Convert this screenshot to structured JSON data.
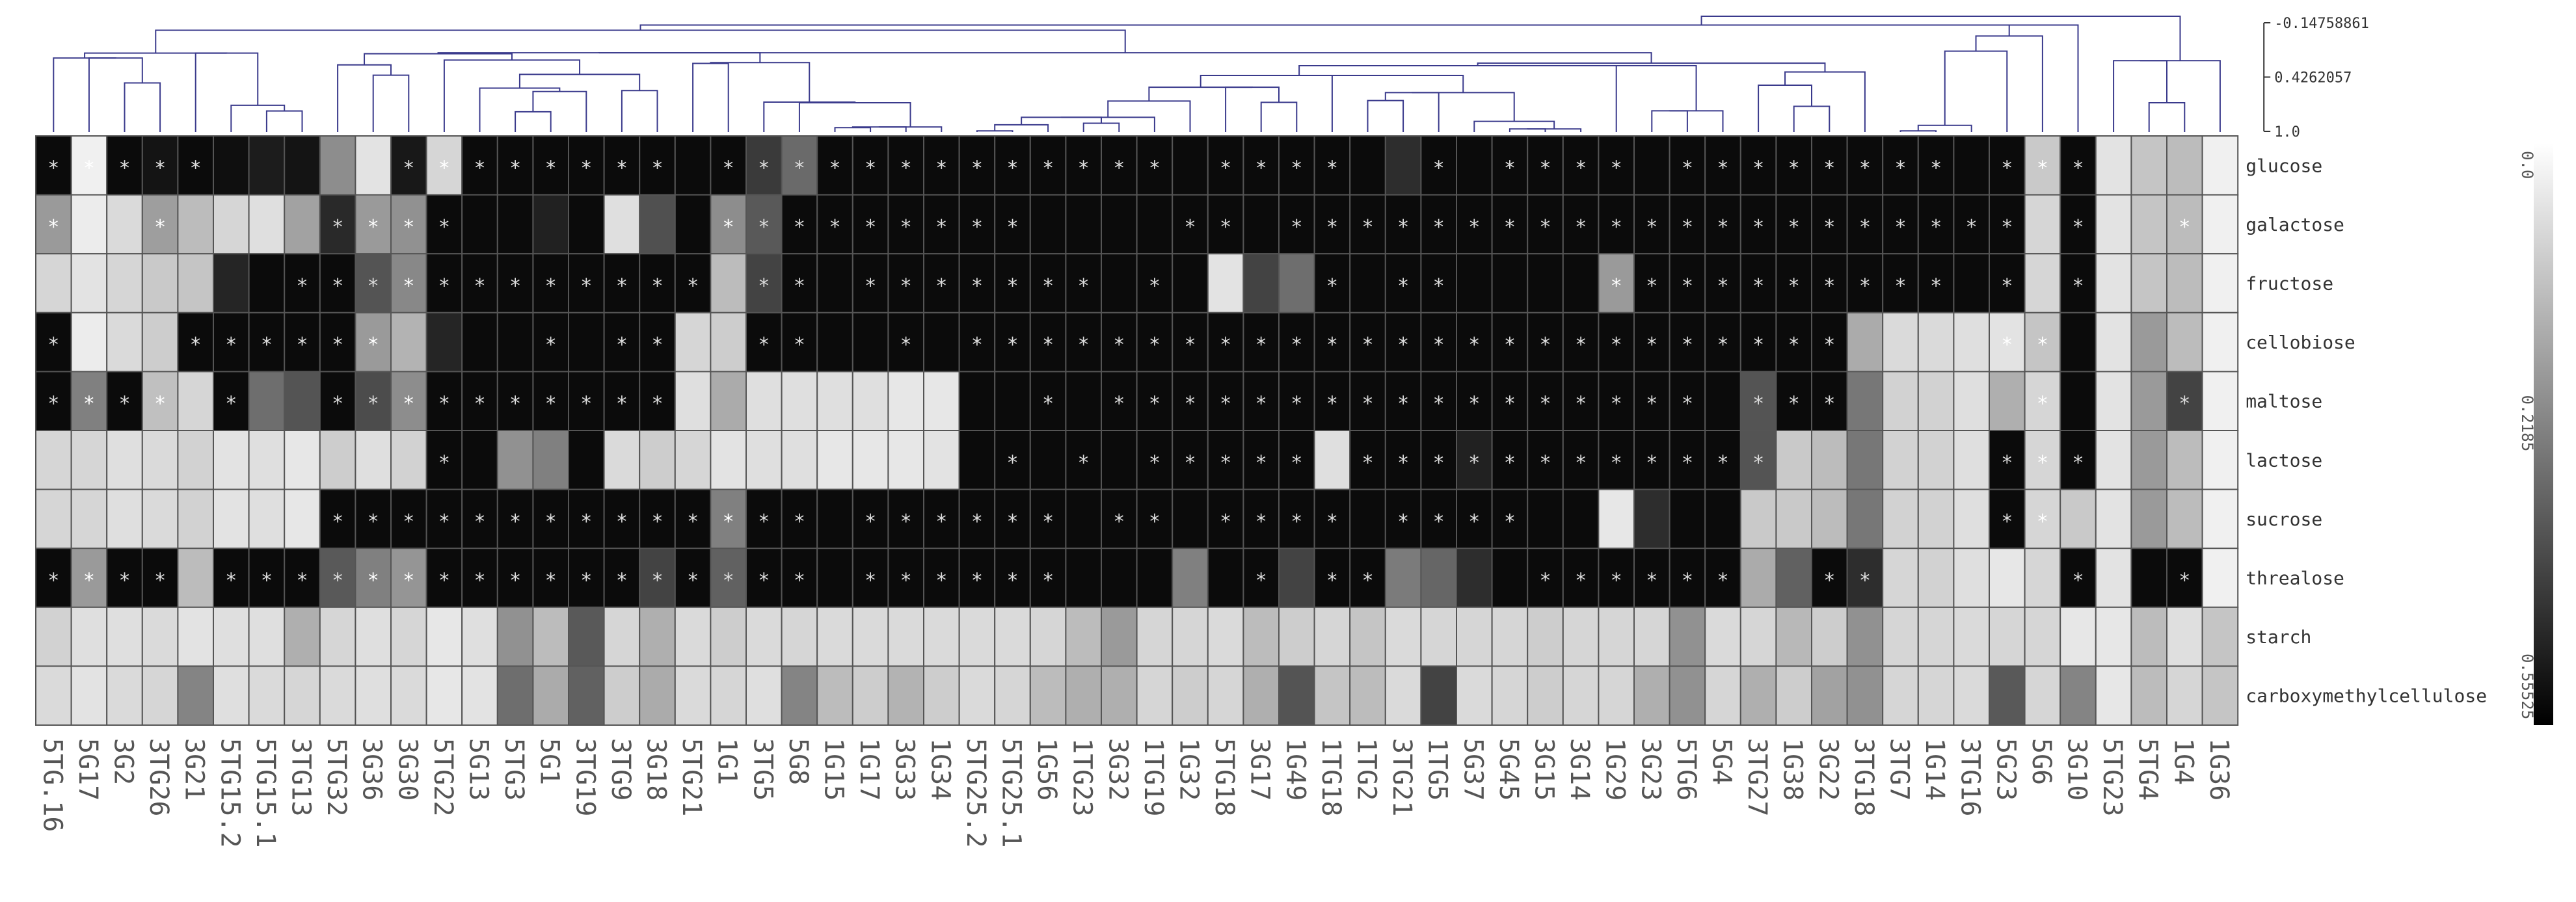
{
  "chart_data": {
    "type": "heatmap",
    "title": "",
    "rows": [
      "glucose",
      "galactose",
      "fructose",
      "cellobiose",
      "maltose",
      "lactose",
      "sucrose",
      "threalose",
      "starch",
      "carboxymethylcellulose"
    ],
    "columns": [
      "5TG.16",
      "5G17",
      "3G2",
      "3TG26",
      "3G21",
      "5TG15.2",
      "5TG15.1",
      "3TG13",
      "5TG32",
      "3G36",
      "3G30",
      "5TG22",
      "5G13",
      "5TG3",
      "5G1",
      "3TG19",
      "3TG9",
      "3G18",
      "5TG21",
      "1G1",
      "3TG5",
      "5G8",
      "1G15",
      "1G17",
      "3G33",
      "1G34",
      "5TG25.2",
      "5TG25.1",
      "1G56",
      "1TG23",
      "3G32",
      "1TG19",
      "1G32",
      "5TG18",
      "3G17",
      "1G49",
      "1TG18",
      "1TG2",
      "3TG21",
      "1TG5",
      "5G37",
      "5G45",
      "3G15",
      "3G14",
      "1G29",
      "3G23",
      "5TG6",
      "5G4",
      "3TG27",
      "1G38",
      "3G22",
      "3TG18",
      "3TG7",
      "1G14",
      "3TG16",
      "5G23",
      "5G6",
      "3G10",
      "5TG23",
      "5TG4",
      "1G4",
      "1G36"
    ],
    "values": [
      [
        0.53,
        0.0,
        0.53,
        0.51,
        0.53,
        0.52,
        0.49,
        0.51,
        0.23,
        0.03,
        0.5,
        0.06,
        0.53,
        0.53,
        0.53,
        0.53,
        0.53,
        0.53,
        0.53,
        0.53,
        0.42,
        0.31,
        0.53,
        0.53,
        0.53,
        0.53,
        0.53,
        0.53,
        0.53,
        0.53,
        0.53,
        0.53,
        0.53,
        0.53,
        0.53,
        0.53,
        0.53,
        0.53,
        0.45,
        0.53,
        0.53,
        0.53,
        0.53,
        0.53,
        0.53,
        0.53,
        0.53,
        0.53,
        0.53,
        0.53,
        0.53,
        0.53,
        0.53,
        0.53,
        0.53,
        0.53,
        0.09,
        0.53,
        0.03,
        0.1,
        0.12,
        0.0
      ],
      [
        0.2,
        0.01,
        0.05,
        0.19,
        0.12,
        0.06,
        0.04,
        0.18,
        0.46,
        0.2,
        0.22,
        0.53,
        0.53,
        0.53,
        0.48,
        0.53,
        0.04,
        0.37,
        0.53,
        0.23,
        0.35,
        0.53,
        0.53,
        0.53,
        0.53,
        0.53,
        0.53,
        0.53,
        0.53,
        0.53,
        0.53,
        0.53,
        0.53,
        0.53,
        0.53,
        0.53,
        0.53,
        0.53,
        0.53,
        0.53,
        0.53,
        0.53,
        0.53,
        0.53,
        0.53,
        0.53,
        0.53,
        0.53,
        0.53,
        0.53,
        0.53,
        0.53,
        0.53,
        0.53,
        0.53,
        0.53,
        0.06,
        0.53,
        0.03,
        0.1,
        0.12,
        0.0
      ],
      [
        0.06,
        0.03,
        0.06,
        0.09,
        0.1,
        0.47,
        0.53,
        0.53,
        0.53,
        0.36,
        0.24,
        0.53,
        0.53,
        0.53,
        0.53,
        0.53,
        0.53,
        0.53,
        0.53,
        0.12,
        0.4,
        0.53,
        0.53,
        0.53,
        0.53,
        0.53,
        0.53,
        0.53,
        0.53,
        0.53,
        0.53,
        0.53,
        0.53,
        0.03,
        0.4,
        0.3,
        0.53,
        0.53,
        0.53,
        0.53,
        0.53,
        0.53,
        0.53,
        0.53,
        0.2,
        0.53,
        0.53,
        0.53,
        0.53,
        0.53,
        0.53,
        0.53,
        0.53,
        0.53,
        0.53,
        0.53,
        0.06,
        0.53,
        0.03,
        0.1,
        0.12,
        0.0
      ],
      [
        0.53,
        0.01,
        0.05,
        0.08,
        0.53,
        0.53,
        0.53,
        0.53,
        0.53,
        0.2,
        0.14,
        0.47,
        0.53,
        0.53,
        0.53,
        0.53,
        0.53,
        0.53,
        0.06,
        0.08,
        0.53,
        0.53,
        0.53,
        0.53,
        0.53,
        0.53,
        0.53,
        0.53,
        0.53,
        0.53,
        0.53,
        0.53,
        0.53,
        0.53,
        0.53,
        0.53,
        0.53,
        0.53,
        0.53,
        0.53,
        0.53,
        0.53,
        0.53,
        0.53,
        0.53,
        0.53,
        0.53,
        0.53,
        0.53,
        0.53,
        0.53,
        0.16,
        0.05,
        0.05,
        0.04,
        0.03,
        0.1,
        0.53,
        0.03,
        0.2,
        0.12,
        0.0
      ],
      [
        0.53,
        0.26,
        0.53,
        0.11,
        0.06,
        0.53,
        0.3,
        0.36,
        0.53,
        0.38,
        0.23,
        0.53,
        0.53,
        0.53,
        0.53,
        0.53,
        0.53,
        0.53,
        0.04,
        0.16,
        0.04,
        0.04,
        0.04,
        0.04,
        0.02,
        0.02,
        0.53,
        0.53,
        0.53,
        0.53,
        0.53,
        0.53,
        0.53,
        0.53,
        0.53,
        0.53,
        0.53,
        0.53,
        0.53,
        0.53,
        0.53,
        0.53,
        0.53,
        0.53,
        0.53,
        0.53,
        0.53,
        0.53,
        0.36,
        0.53,
        0.53,
        0.28,
        0.07,
        0.07,
        0.04,
        0.15,
        0.06,
        0.53,
        0.03,
        0.2,
        0.4,
        0.0
      ],
      [
        0.06,
        0.06,
        0.04,
        0.05,
        0.07,
        0.03,
        0.04,
        0.02,
        0.08,
        0.04,
        0.07,
        0.53,
        0.53,
        0.22,
        0.26,
        0.53,
        0.05,
        0.08,
        0.06,
        0.03,
        0.04,
        0.04,
        0.02,
        0.02,
        0.02,
        0.03,
        0.53,
        0.53,
        0.53,
        0.53,
        0.53,
        0.53,
        0.53,
        0.53,
        0.53,
        0.53,
        0.04,
        0.53,
        0.53,
        0.53,
        0.48,
        0.53,
        0.53,
        0.53,
        0.53,
        0.53,
        0.53,
        0.53,
        0.36,
        0.09,
        0.12,
        0.28,
        0.07,
        0.07,
        0.04,
        0.53,
        0.06,
        0.53,
        0.03,
        0.2,
        0.12,
        0.0
      ],
      [
        0.06,
        0.06,
        0.04,
        0.05,
        0.07,
        0.03,
        0.04,
        0.02,
        0.53,
        0.53,
        0.53,
        0.53,
        0.53,
        0.53,
        0.53,
        0.53,
        0.53,
        0.53,
        0.53,
        0.26,
        0.53,
        0.53,
        0.53,
        0.53,
        0.53,
        0.53,
        0.53,
        0.53,
        0.53,
        0.53,
        0.53,
        0.53,
        0.53,
        0.53,
        0.53,
        0.53,
        0.53,
        0.53,
        0.53,
        0.53,
        0.53,
        0.53,
        0.53,
        0.53,
        0.02,
        0.45,
        0.53,
        0.53,
        0.09,
        0.09,
        0.12,
        0.28,
        0.07,
        0.07,
        0.04,
        0.53,
        0.06,
        0.09,
        0.03,
        0.2,
        0.12,
        0.0
      ],
      [
        0.53,
        0.2,
        0.53,
        0.53,
        0.12,
        0.53,
        0.53,
        0.53,
        0.35,
        0.26,
        0.21,
        0.53,
        0.53,
        0.53,
        0.53,
        0.53,
        0.53,
        0.4,
        0.53,
        0.33,
        0.53,
        0.53,
        0.53,
        0.53,
        0.53,
        0.53,
        0.53,
        0.53,
        0.53,
        0.53,
        0.53,
        0.53,
        0.26,
        0.53,
        0.53,
        0.4,
        0.53,
        0.53,
        0.27,
        0.32,
        0.45,
        0.53,
        0.53,
        0.53,
        0.53,
        0.53,
        0.53,
        0.53,
        0.16,
        0.33,
        0.53,
        0.45,
        0.06,
        0.07,
        0.04,
        0.02,
        0.06,
        0.53,
        0.03,
        0.53,
        0.53,
        0.0
      ],
      [
        0.07,
        0.04,
        0.04,
        0.05,
        0.03,
        0.04,
        0.04,
        0.15,
        0.06,
        0.04,
        0.06,
        0.02,
        0.04,
        0.22,
        0.12,
        0.35,
        0.06,
        0.15,
        0.05,
        0.08,
        0.05,
        0.06,
        0.05,
        0.05,
        0.05,
        0.05,
        0.05,
        0.05,
        0.06,
        0.12,
        0.2,
        0.06,
        0.06,
        0.05,
        0.12,
        0.08,
        0.06,
        0.1,
        0.05,
        0.06,
        0.06,
        0.06,
        0.08,
        0.06,
        0.06,
        0.06,
        0.22,
        0.05,
        0.06,
        0.13,
        0.08,
        0.22,
        0.06,
        0.06,
        0.05,
        0.06,
        0.06,
        0.02,
        0.02,
        0.12,
        0.04,
        0.1
      ],
      [
        0.05,
        0.03,
        0.05,
        0.06,
        0.25,
        0.04,
        0.05,
        0.06,
        0.05,
        0.04,
        0.05,
        0.02,
        0.03,
        0.3,
        0.16,
        0.33,
        0.08,
        0.16,
        0.05,
        0.06,
        0.04,
        0.25,
        0.12,
        0.08,
        0.14,
        0.08,
        0.05,
        0.06,
        0.12,
        0.15,
        0.15,
        0.06,
        0.08,
        0.06,
        0.15,
        0.36,
        0.1,
        0.12,
        0.05,
        0.4,
        0.05,
        0.06,
        0.08,
        0.06,
        0.06,
        0.15,
        0.22,
        0.06,
        0.15,
        0.08,
        0.18,
        0.22,
        0.06,
        0.06,
        0.05,
        0.35,
        0.06,
        0.25,
        0.02,
        0.12,
        0.06,
        0.1
      ]
    ],
    "marked_value": "*",
    "marked_cells": [
      [
        0,
        1,
        2,
        3,
        4,
        10,
        11,
        12,
        13,
        14,
        15,
        16,
        17,
        19,
        20,
        21,
        22,
        23,
        24,
        25,
        26,
        27,
        28,
        29,
        30,
        31,
        33,
        34,
        35,
        36,
        39,
        41,
        42,
        43,
        44,
        46,
        47,
        48,
        49,
        50,
        51,
        52,
        53,
        55,
        56,
        57
      ],
      [
        0,
        3,
        8,
        9,
        10,
        11,
        19,
        20,
        21,
        22,
        23,
        24,
        25,
        26,
        27,
        32,
        33,
        35,
        36,
        37,
        38,
        39,
        40,
        41,
        42,
        43,
        44,
        45,
        46,
        47,
        48,
        49,
        50,
        51,
        52,
        53,
        54,
        55,
        57,
        60
      ],
      [
        7,
        8,
        9,
        10,
        11,
        12,
        13,
        14,
        15,
        16,
        17,
        18,
        20,
        21,
        23,
        24,
        25,
        26,
        27,
        28,
        29,
        31,
        36,
        38,
        39,
        44,
        45,
        46,
        47,
        48,
        49,
        50,
        51,
        52,
        53,
        55,
        57
      ],
      [
        0,
        4,
        5,
        6,
        7,
        8,
        9,
        14,
        16,
        17,
        20,
        21,
        24,
        26,
        27,
        28,
        29,
        30,
        31,
        32,
        33,
        34,
        35,
        36,
        37,
        38,
        39,
        40,
        41,
        42,
        43,
        44,
        45,
        46,
        47,
        48,
        49,
        50,
        55,
        56
      ],
      [
        0,
        1,
        2,
        3,
        5,
        8,
        9,
        10,
        11,
        12,
        13,
        14,
        15,
        16,
        17,
        28,
        30,
        31,
        32,
        33,
        34,
        35,
        36,
        37,
        38,
        39,
        40,
        41,
        42,
        43,
        44,
        45,
        46,
        48,
        49,
        50,
        56,
        60
      ],
      [
        11,
        27,
        29,
        31,
        32,
        33,
        34,
        35,
        37,
        38,
        39,
        40,
        41,
        42,
        43,
        44,
        45,
        46,
        47,
        48,
        55,
        56,
        57
      ],
      [
        8,
        9,
        10,
        11,
        12,
        13,
        14,
        15,
        16,
        17,
        18,
        19,
        20,
        21,
        23,
        24,
        25,
        26,
        27,
        28,
        30,
        31,
        33,
        34,
        35,
        36,
        38,
        39,
        40,
        41,
        55,
        56
      ],
      [
        0,
        1,
        2,
        3,
        5,
        6,
        7,
        8,
        9,
        10,
        11,
        12,
        13,
        14,
        15,
        16,
        17,
        18,
        19,
        20,
        21,
        23,
        24,
        25,
        26,
        27,
        28,
        34,
        36,
        37,
        42,
        43,
        44,
        45,
        46,
        47,
        50,
        51,
        57,
        60
      ],
      [],
      []
    ],
    "dendrogram_scale": {
      "ticks": [
        "-0.14758861",
        "0.4262057",
        "1.0"
      ]
    },
    "colorbar": {
      "ticks": [
        "0.0",
        "0.2185",
        "0.55525"
      ],
      "min": 0.0,
      "max": 0.55525,
      "low_color": "#ffffff",
      "high_color": "#000000"
    },
    "grid": false,
    "legend": "right"
  }
}
